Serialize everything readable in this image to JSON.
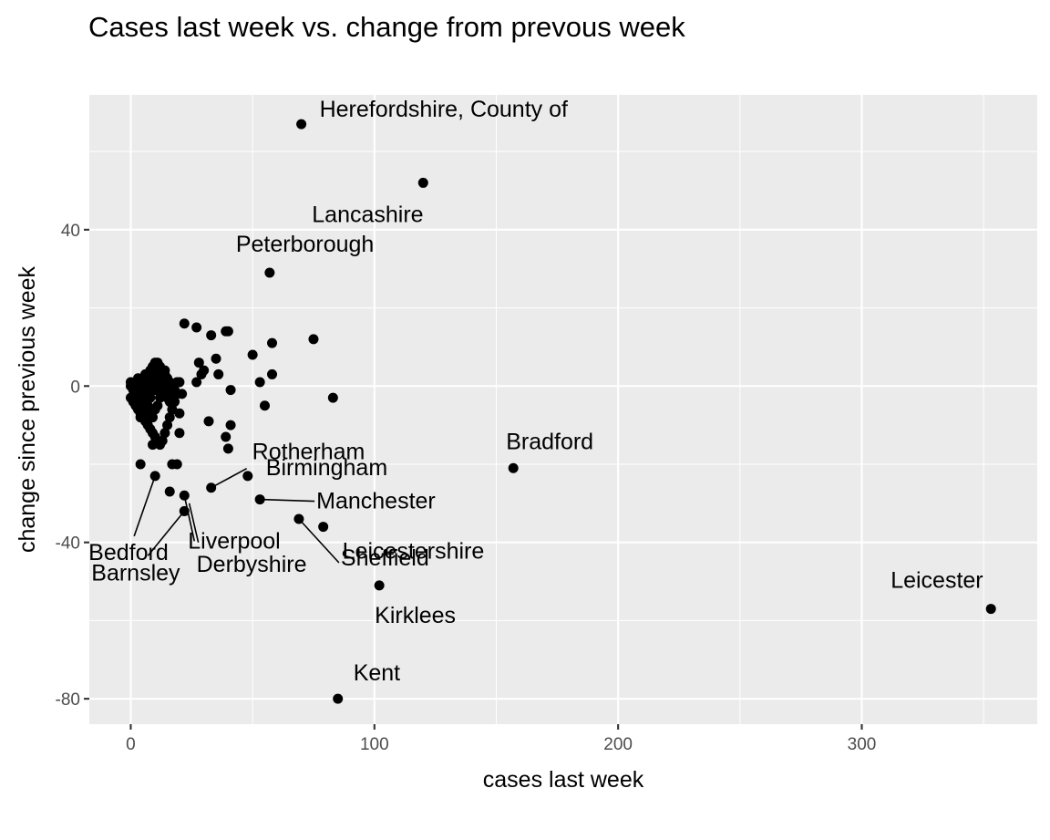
{
  "chart_data": {
    "type": "scatter",
    "title": "Cases last week vs. change from prevous week",
    "xlabel": "cases last week",
    "ylabel": "change since previous week",
    "xlim": [
      -17,
      372
    ],
    "ylim": [
      -86.5,
      74.5
    ],
    "xticks": [
      0,
      100,
      200,
      300
    ],
    "yticks": [
      -80,
      -40,
      0,
      40
    ],
    "grid": true,
    "legend": "none",
    "point_color": "#000000",
    "panel_background": "#ebebeb",
    "points": [
      {
        "x": 70,
        "y": 67
      },
      {
        "x": 120,
        "y": 52
      },
      {
        "x": 57,
        "y": 29
      },
      {
        "x": 22,
        "y": 16
      },
      {
        "x": 27,
        "y": 15
      },
      {
        "x": 33,
        "y": 13
      },
      {
        "x": 39,
        "y": 14
      },
      {
        "x": 40,
        "y": 14
      },
      {
        "x": 75,
        "y": 12
      },
      {
        "x": 58,
        "y": 11
      },
      {
        "x": 50,
        "y": 8
      },
      {
        "x": 35,
        "y": 7
      },
      {
        "x": 28,
        "y": 6
      },
      {
        "x": 30,
        "y": 4
      },
      {
        "x": 29,
        "y": 3
      },
      {
        "x": 36,
        "y": 3
      },
      {
        "x": 58,
        "y": 3
      },
      {
        "x": 27,
        "y": 1
      },
      {
        "x": 53,
        "y": 1
      },
      {
        "x": 41,
        "y": -1
      },
      {
        "x": 83,
        "y": -3
      },
      {
        "x": 55,
        "y": -5
      },
      {
        "x": 32,
        "y": -9
      },
      {
        "x": 41,
        "y": -10
      },
      {
        "x": 39,
        "y": -13
      },
      {
        "x": 40,
        "y": -16
      },
      {
        "x": 20,
        "y": -12
      },
      {
        "x": 4,
        "y": -20
      },
      {
        "x": 17,
        "y": -20
      },
      {
        "x": 19,
        "y": -20
      },
      {
        "x": 48,
        "y": -23
      },
      {
        "x": 10,
        "y": -23
      },
      {
        "x": 33,
        "y": -26
      },
      {
        "x": 16,
        "y": -27
      },
      {
        "x": 22,
        "y": -28
      },
      {
        "x": 53,
        "y": -29
      },
      {
        "x": 22,
        "y": -32
      },
      {
        "x": 69,
        "y": -34
      },
      {
        "x": 79,
        "y": -36
      },
      {
        "x": 102,
        "y": -51
      },
      {
        "x": 157,
        "y": -21
      },
      {
        "x": 353,
        "y": -57
      },
      {
        "x": 85,
        "y": -80
      },
      {
        "x": 0,
        "y": 0
      },
      {
        "x": 1,
        "y": -1
      },
      {
        "x": 2,
        "y": 1
      },
      {
        "x": 3,
        "y": 2
      },
      {
        "x": 4,
        "y": 0
      },
      {
        "x": 5,
        "y": -2
      },
      {
        "x": 6,
        "y": 3
      },
      {
        "x": 7,
        "y": 1
      },
      {
        "x": 8,
        "y": 4
      },
      {
        "x": 9,
        "y": 5
      },
      {
        "x": 10,
        "y": 6
      },
      {
        "x": 11,
        "y": 6
      },
      {
        "x": 12,
        "y": 5
      },
      {
        "x": 13,
        "y": 4
      },
      {
        "x": 14,
        "y": 3
      },
      {
        "x": 15,
        "y": 2
      },
      {
        "x": 16,
        "y": 1
      },
      {
        "x": 17,
        "y": 0
      },
      {
        "x": 18,
        "y": -1
      },
      {
        "x": 19,
        "y": 1
      },
      {
        "x": 20,
        "y": 1
      },
      {
        "x": 21,
        "y": -2
      },
      {
        "x": 0,
        "y": -3
      },
      {
        "x": 1,
        "y": -4
      },
      {
        "x": 2,
        "y": -5
      },
      {
        "x": 3,
        "y": -6
      },
      {
        "x": 4,
        "y": -7
      },
      {
        "x": 5,
        "y": -8
      },
      {
        "x": 6,
        "y": -9
      },
      {
        "x": 7,
        "y": -10
      },
      {
        "x": 8,
        "y": -11
      },
      {
        "x": 9,
        "y": -12
      },
      {
        "x": 10,
        "y": -13
      },
      {
        "x": 11,
        "y": -14
      },
      {
        "x": 12,
        "y": -15
      },
      {
        "x": 13,
        "y": -14
      },
      {
        "x": 14,
        "y": -12
      },
      {
        "x": 15,
        "y": -10
      },
      {
        "x": 16,
        "y": -8
      },
      {
        "x": 17,
        "y": -6
      },
      {
        "x": 18,
        "y": -4
      },
      {
        "x": 19,
        "y": -2
      },
      {
        "x": 20,
        "y": -7
      },
      {
        "x": 12,
        "y": 0
      },
      {
        "x": 11,
        "y": 2
      },
      {
        "x": 10,
        "y": 3
      },
      {
        "x": 9,
        "y": 1
      },
      {
        "x": 8,
        "y": 0
      },
      {
        "x": 7,
        "y": -1
      },
      {
        "x": 6,
        "y": -2
      },
      {
        "x": 5,
        "y": -3
      },
      {
        "x": 4,
        "y": -4
      },
      {
        "x": 3,
        "y": -1
      },
      {
        "x": 2,
        "y": -2
      },
      {
        "x": 1,
        "y": 0
      },
      {
        "x": 0,
        "y": 1
      },
      {
        "x": 14,
        "y": 4
      },
      {
        "x": 13,
        "y": 1
      },
      {
        "x": 12,
        "y": -3
      },
      {
        "x": 11,
        "y": -5
      },
      {
        "x": 10,
        "y": -6
      },
      {
        "x": 9,
        "y": -8
      },
      {
        "x": 8,
        "y": -7
      },
      {
        "x": 7,
        "y": -5
      },
      {
        "x": 6,
        "y": -6
      },
      {
        "x": 5,
        "y": -4
      },
      {
        "x": 4,
        "y": -8
      },
      {
        "x": 3,
        "y": -3
      },
      {
        "x": 15,
        "y": -3
      },
      {
        "x": 16,
        "y": -4
      },
      {
        "x": 17,
        "y": -2
      },
      {
        "x": 14,
        "y": -1
      },
      {
        "x": 13,
        "y": -2
      },
      {
        "x": 9,
        "y": -15
      },
      {
        "x": 8,
        "y": -3
      },
      {
        "x": 7,
        "y": 2
      },
      {
        "x": 6,
        "y": 0
      },
      {
        "x": 5,
        "y": 1
      },
      {
        "x": 10,
        "y": -1
      },
      {
        "x": 11,
        "y": 4
      }
    ],
    "labels": [
      {
        "text": "Herefordshire, County of",
        "x": 70,
        "y": 67
      },
      {
        "text": "Lancashire",
        "x": 120,
        "y": 52
      },
      {
        "text": "Peterborough",
        "x": 57,
        "y": 29
      },
      {
        "text": "Bradford",
        "x": 157,
        "y": -21
      },
      {
        "text": "Rotherham",
        "x": 33,
        "y": -26
      },
      {
        "text": "Birmingham",
        "x": 48,
        "y": -23
      },
      {
        "text": "Manchester",
        "x": 53,
        "y": -29
      },
      {
        "text": "Leicestershire",
        "x": 79,
        "y": -36
      },
      {
        "text": "Sheffield",
        "x": 69,
        "y": -34
      },
      {
        "text": "Bedford",
        "x": 10,
        "y": -23
      },
      {
        "text": "Liverpool",
        "x": 22,
        "y": -28
      },
      {
        "text": "Barnsley",
        "x": 22,
        "y": -32
      },
      {
        "text": "Derbyshire",
        "x": 24,
        "y": -30
      },
      {
        "text": "Leicester",
        "x": 353,
        "y": -57
      },
      {
        "text": "Kirklees",
        "x": 102,
        "y": -51
      },
      {
        "text": "Kent",
        "x": 85,
        "y": -80
      }
    ]
  }
}
